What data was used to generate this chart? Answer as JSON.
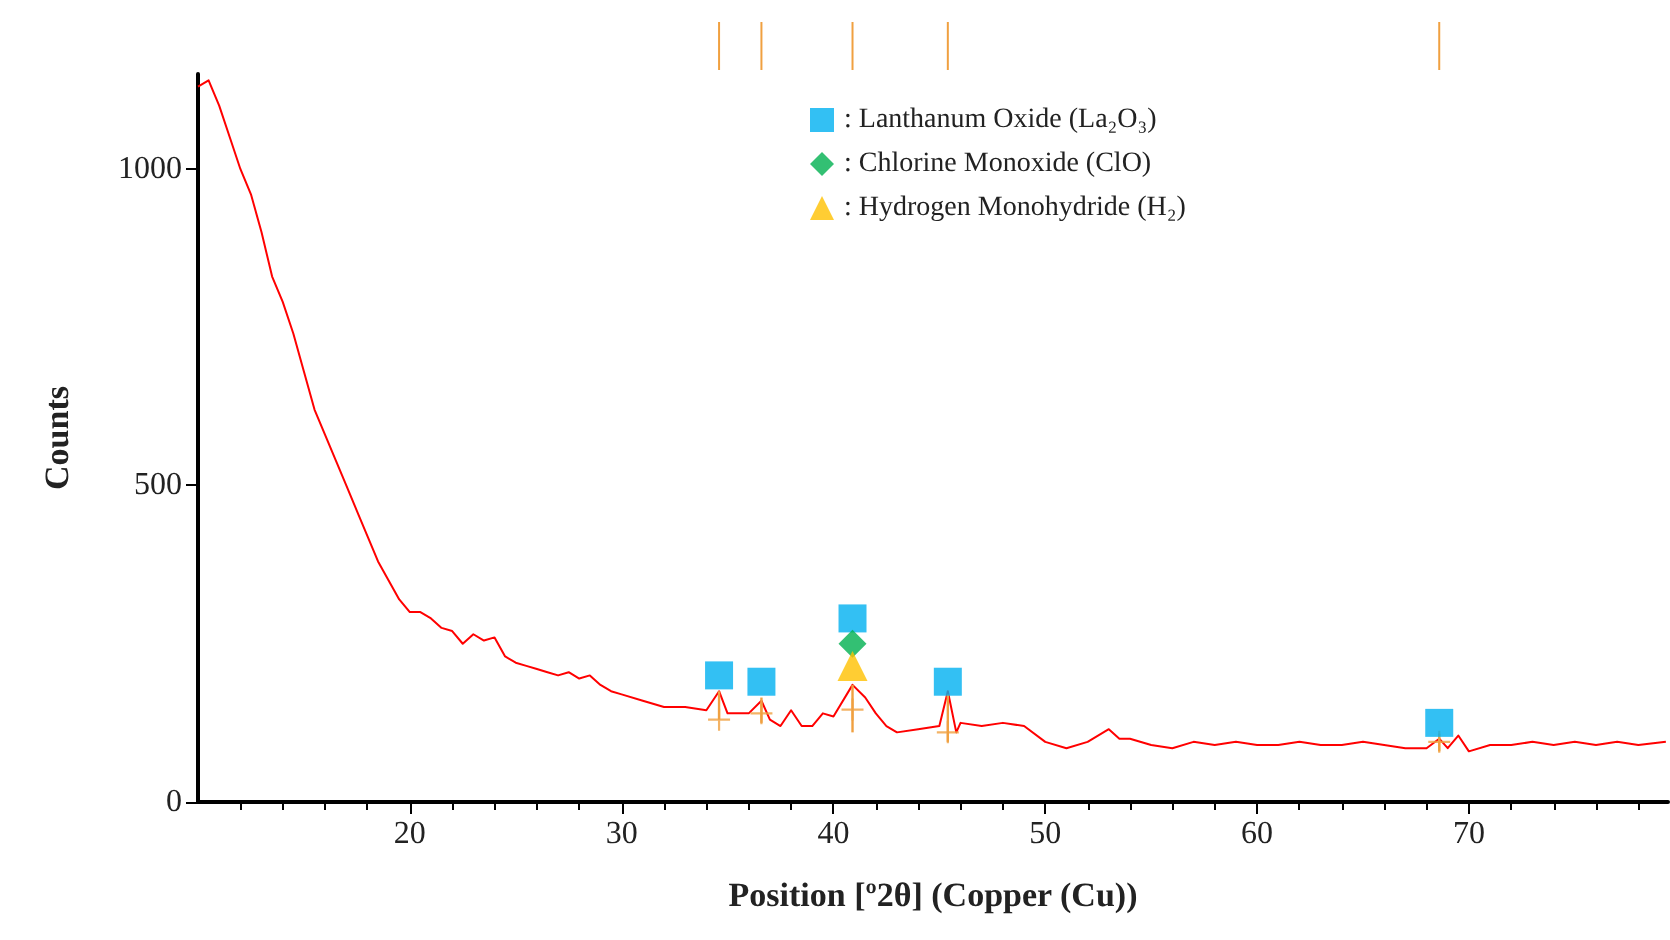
{
  "chart_data": {
    "type": "line",
    "xlabel": "Position [º2θ] (Copper (Cu))",
    "ylabel": "Counts",
    "xlim": [
      10,
      79.4
    ],
    "xticks": [
      20,
      30,
      40,
      50,
      60,
      70
    ],
    "ylim": [
      0,
      1150
    ],
    "yticks": [
      0,
      500,
      1000
    ],
    "grid": false,
    "legend": "top",
    "series": [
      {
        "color": "#ff0000",
        "marker": "none",
        "x": [
          10,
          10.5,
          11,
          11.5,
          12,
          12.5,
          13,
          13.5,
          14,
          14.5,
          15,
          15.5,
          16,
          16.5,
          17,
          17.5,
          18,
          18.5,
          19,
          19.5,
          20,
          20.5,
          21,
          21.5,
          22,
          22.5,
          23,
          23.5,
          24,
          24.5,
          25,
          25.5,
          26,
          26.5,
          27,
          27.5,
          28,
          28.5,
          29,
          29.5,
          30,
          31,
          32,
          33,
          34,
          34.6,
          35,
          36,
          36.6,
          37,
          37.5,
          38,
          38.5,
          39,
          39.5,
          40,
          40.9,
          41.5,
          42,
          42.5,
          43,
          44,
          45,
          45.4,
          45.8,
          46,
          47,
          48,
          49,
          50,
          51,
          52,
          53,
          53.5,
          54,
          55,
          56,
          57,
          58,
          59,
          60,
          61,
          62,
          63,
          64,
          65,
          66,
          67,
          68,
          68.6,
          69,
          69.5,
          70,
          71,
          72,
          73,
          74,
          75,
          76,
          77,
          78,
          79.3
        ],
        "values": [
          1130,
          1140,
          1100,
          1050,
          1000,
          960,
          900,
          830,
          790,
          740,
          680,
          620,
          580,
          540,
          500,
          460,
          420,
          380,
          350,
          320,
          300,
          300,
          290,
          275,
          270,
          250,
          265,
          255,
          260,
          230,
          220,
          215,
          210,
          205,
          200,
          205,
          195,
          200,
          185,
          175,
          170,
          160,
          150,
          150,
          145,
          175,
          140,
          140,
          160,
          130,
          120,
          145,
          120,
          120,
          140,
          135,
          185,
          165,
          140,
          120,
          110,
          115,
          120,
          175,
          110,
          125,
          120,
          125,
          120,
          95,
          85,
          95,
          115,
          100,
          100,
          90,
          85,
          95,
          90,
          95,
          90,
          90,
          95,
          90,
          90,
          95,
          90,
          85,
          85,
          100,
          85,
          105,
          80,
          90,
          90,
          95,
          90,
          95,
          90,
          95,
          90,
          95
        ]
      },
      {
        "type": "scatter",
        "color": "#f0a040",
        "marker": "cross",
        "x": [
          34.6,
          36.6,
          40.9,
          45.4,
          68.6
        ],
        "values": [
          130,
          140,
          146,
          110,
          95
        ],
        "errors": [
          [
            130,
            175
          ],
          [
            125,
            165
          ],
          [
            110,
            185
          ],
          [
            95,
            170
          ],
          [
            80,
            108
          ]
        ]
      },
      {
        "type": "scatter",
        "name": ": Lanthanum Oxide (La₂O₃)",
        "color": "#00b0f0",
        "marker": "square",
        "x": [
          34.6,
          36.6,
          40.9,
          45.4,
          68.6
        ],
        "values": [
          200,
          190,
          290,
          190,
          125
        ]
      },
      {
        "type": "scatter",
        "name": ": Chlorine Monoxide (ClO)",
        "color": "#00b050",
        "marker": "diamond",
        "x": [
          40.9
        ],
        "values": [
          250
        ]
      },
      {
        "type": "scatter",
        "name": ": Hydrogen Monohydride (H₂)",
        "color": "#ffc000",
        "marker": "triangle",
        "x": [
          40.9
        ],
        "values": [
          215
        ]
      }
    ]
  }
}
